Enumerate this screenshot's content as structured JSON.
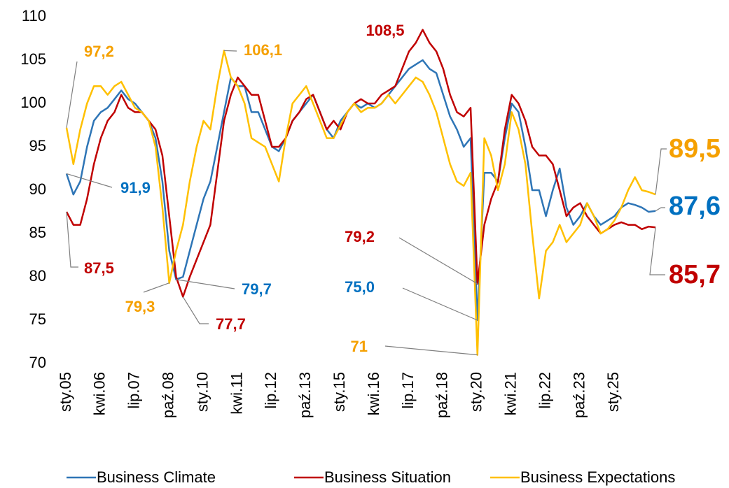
{
  "chart_data": {
    "type": "line",
    "categories": [
      "sty.05",
      null,
      null,
      null,
      null,
      "kwi.06",
      null,
      null,
      null,
      null,
      "lip.07",
      null,
      null,
      null,
      null,
      "paź.08",
      null,
      null,
      null,
      null,
      "sty.10",
      null,
      null,
      null,
      null,
      "kwi.11",
      null,
      null,
      null,
      null,
      "lip.12",
      null,
      null,
      null,
      null,
      "paź.13",
      null,
      null,
      null,
      null,
      "sty.15",
      null,
      null,
      null,
      null,
      "kwi.16",
      null,
      null,
      null,
      null,
      "lip.17",
      null,
      null,
      null,
      null,
      "paź.18",
      null,
      null,
      null,
      null,
      "sty.20",
      null,
      null,
      null,
      null,
      "kwi.21",
      null,
      null,
      null,
      null,
      "lip.22",
      null,
      null,
      null,
      null,
      "paź.23",
      null,
      null,
      null,
      null,
      "sty.25",
      null,
      null,
      null,
      null,
      null,
      null
    ],
    "ylim": [
      70,
      110
    ],
    "yticks": [
      70,
      75,
      80,
      85,
      90,
      95,
      100,
      105,
      110
    ],
    "legend": "bottom",
    "series": [
      {
        "name": "Business Climate",
        "color": "#2E75B6",
        "label_color": "#0070C0",
        "values": [
          91.9,
          89.5,
          91,
          95,
          98,
          99,
          99.5,
          100.5,
          101.5,
          100.5,
          100,
          99,
          98,
          96,
          91,
          83,
          79.7,
          80,
          83,
          86,
          89,
          91,
          95,
          99,
          103,
          102,
          102,
          99,
          99,
          97,
          95,
          94.5,
          96,
          98,
          99,
          100,
          101,
          99,
          97,
          96,
          98,
          99,
          100,
          99.5,
          100,
          99.5,
          100,
          101,
          102,
          103,
          104,
          104.5,
          105,
          104,
          103.5,
          101,
          98.5,
          97,
          95,
          96,
          75.0,
          92,
          92,
          91,
          96,
          100,
          99,
          95,
          90,
          90,
          87,
          90,
          92.5,
          88,
          86,
          87,
          88.5,
          87,
          86,
          86.5,
          87,
          88,
          88.5,
          88.3,
          88,
          87.5,
          87.6
        ],
        "value_labels": [
          "91,9",
          null,
          null,
          null,
          null,
          null,
          null,
          null,
          null,
          null,
          null,
          null,
          null,
          null,
          null,
          null,
          "79,7",
          null,
          null,
          null,
          null,
          null,
          null,
          null,
          null,
          null,
          null,
          null,
          null,
          null,
          null,
          null,
          null,
          null,
          null,
          null,
          null,
          null,
          null,
          null,
          null,
          null,
          null,
          null,
          null,
          null,
          null,
          null,
          null,
          null,
          null,
          null,
          null,
          null,
          null,
          null,
          null,
          null,
          null,
          null,
          "75,0",
          null,
          null,
          null,
          null,
          null,
          null,
          null,
          null,
          null,
          null,
          null,
          null,
          null,
          null,
          null,
          null,
          null,
          null,
          null,
          null,
          null,
          null,
          null,
          null,
          null,
          "87,6"
        ]
      },
      {
        "name": "Business Situation",
        "color": "#C00000",
        "label_color": "#C00000",
        "values": [
          87.5,
          86,
          86,
          89,
          93,
          96,
          98,
          99,
          101,
          99.5,
          99,
          99,
          98,
          97,
          94,
          87,
          80,
          77.7,
          80,
          82,
          84,
          86,
          92,
          98,
          101,
          103,
          102,
          101,
          101,
          98,
          95,
          95,
          96,
          98,
          99,
          100.5,
          101,
          99,
          97,
          98,
          97,
          99,
          100,
          100.5,
          100,
          100,
          101,
          101.5,
          102,
          104,
          106,
          107,
          108.5,
          107,
          106,
          104,
          101,
          99,
          98.5,
          99.5,
          79.2,
          86,
          89,
          91,
          97,
          101,
          100,
          98,
          95,
          94,
          94,
          93,
          90,
          87,
          88,
          88.5,
          87,
          86,
          85,
          85.5,
          86,
          86.3,
          86,
          86,
          85.5,
          85.8,
          85.7
        ],
        "value_labels": [
          "87,5",
          null,
          null,
          null,
          null,
          null,
          null,
          null,
          null,
          null,
          null,
          null,
          null,
          null,
          null,
          null,
          null,
          "77,7",
          null,
          null,
          null,
          null,
          null,
          null,
          null,
          null,
          null,
          null,
          null,
          null,
          null,
          null,
          null,
          null,
          null,
          null,
          null,
          null,
          null,
          null,
          null,
          null,
          null,
          null,
          null,
          null,
          null,
          null,
          null,
          null,
          null,
          null,
          "108,5",
          null,
          null,
          null,
          null,
          null,
          null,
          null,
          "79,2",
          null,
          null,
          null,
          null,
          null,
          null,
          null,
          null,
          null,
          null,
          null,
          null,
          null,
          null,
          null,
          null,
          null,
          null,
          null,
          null,
          null,
          null,
          null,
          null,
          null,
          "85,7"
        ]
      },
      {
        "name": "Business Expectations",
        "color": "#FFC000",
        "label_color": "#F5A000",
        "values": [
          97.2,
          93,
          97,
          100,
          102,
          102,
          101,
          102,
          102.5,
          101,
          99.5,
          99,
          98,
          95,
          88,
          79.3,
          83,
          86,
          91,
          95,
          98,
          97,
          102,
          106.1,
          103,
          102,
          100,
          96,
          95.5,
          95,
          93,
          91,
          96,
          100,
          101,
          102,
          100,
          98,
          96,
          96,
          97.5,
          99,
          100,
          99,
          99.5,
          99.5,
          100,
          101,
          100,
          101,
          102,
          103,
          102.5,
          101,
          99,
          96,
          93,
          91,
          90.5,
          92,
          71,
          96,
          94,
          90,
          93,
          99,
          97,
          93,
          85,
          77.5,
          83,
          84,
          86,
          84,
          85,
          86,
          88.5,
          87,
          85,
          85.5,
          86.5,
          88,
          90,
          91.5,
          90,
          89.8,
          89.5
        ],
        "value_labels": [
          "97,2",
          null,
          null,
          null,
          null,
          null,
          null,
          null,
          null,
          null,
          null,
          null,
          null,
          null,
          null,
          "79,3",
          null,
          null,
          null,
          null,
          null,
          null,
          null,
          "106,1",
          null,
          null,
          null,
          null,
          null,
          null,
          null,
          null,
          null,
          null,
          null,
          null,
          null,
          null,
          null,
          null,
          null,
          null,
          null,
          null,
          null,
          null,
          null,
          null,
          null,
          null,
          null,
          null,
          null,
          null,
          null,
          null,
          null,
          null,
          null,
          null,
          "71",
          null,
          null,
          null,
          null,
          null,
          null,
          null,
          null,
          null,
          null,
          null,
          null,
          null,
          null,
          null,
          null,
          null,
          null,
          null,
          null,
          null,
          null,
          null,
          null,
          null,
          "89,5"
        ]
      }
    ]
  }
}
